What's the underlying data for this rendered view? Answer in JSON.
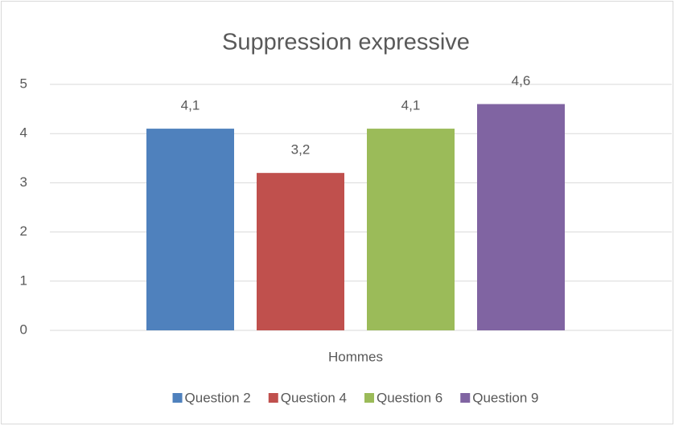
{
  "chart_data": {
    "type": "bar",
    "title": "Suppression expressive",
    "categories": [
      "Hommes"
    ],
    "series": [
      {
        "name": "Question 2",
        "color": "#4f81bd",
        "values": [
          4.1
        ],
        "value_labels": [
          "4,1"
        ]
      },
      {
        "name": "Question 4",
        "color": "#c0504d",
        "values": [
          3.2
        ],
        "value_labels": [
          "3,2"
        ]
      },
      {
        "name": "Question 6",
        "color": "#9bbb59",
        "values": [
          4.1
        ],
        "value_labels": [
          "4,1"
        ]
      },
      {
        "name": "Question 9",
        "color": "#8064a2",
        "values": [
          4.6
        ],
        "value_labels": [
          "4,6"
        ]
      }
    ],
    "ylim": [
      0,
      5
    ],
    "yticks": [
      0,
      1,
      2,
      3,
      4,
      5
    ],
    "grid": true,
    "legend": "bottom"
  }
}
